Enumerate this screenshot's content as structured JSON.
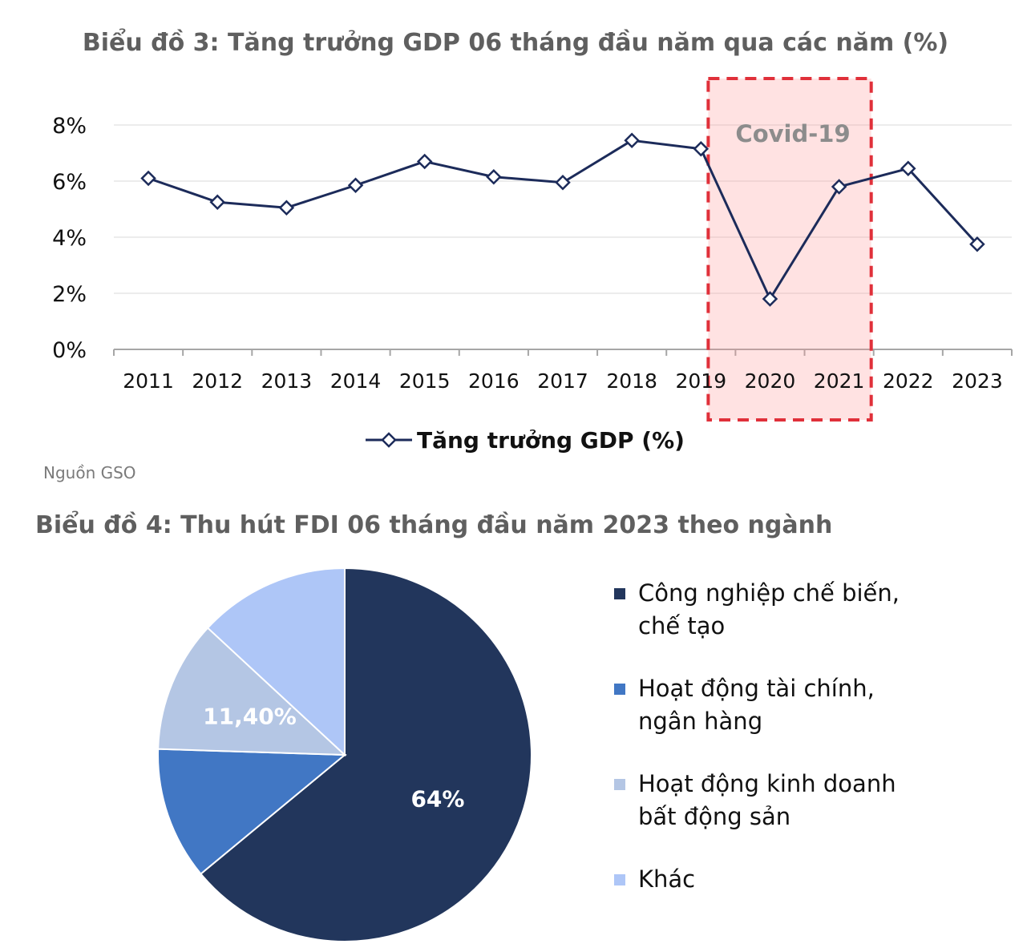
{
  "chart_data": [
    {
      "type": "line",
      "title": "Biểu đồ 3: Tăng trưởng GDP 06 tháng đầu năm qua các năm (%)",
      "x": [
        "2011",
        "2012",
        "2013",
        "2014",
        "2015",
        "2016",
        "2017",
        "2018",
        "2019",
        "2020",
        "2021",
        "2022",
        "2023"
      ],
      "series": [
        {
          "name": "Tăng trưởng GDP (%)",
          "values": [
            6.1,
            5.25,
            5.05,
            5.85,
            6.7,
            6.15,
            5.95,
            7.45,
            7.15,
            1.8,
            5.8,
            6.45,
            3.75
          ],
          "color": "#1c2b5a"
        }
      ],
      "ylim": [
        0,
        8
      ],
      "yticks": [
        "0%",
        "2%",
        "4%",
        "6%",
        "8%"
      ],
      "grid": true,
      "legend": "bottom-center",
      "annotation": {
        "text": "Covid-19",
        "x_from": "2020",
        "x_to": "2021",
        "color": "#e0303a"
      }
    },
    {
      "type": "pie",
      "title": "Biểu đồ 4:  Thu hút FDI 06 tháng đầu năm 2023 theo ngành",
      "categories": [
        "Công nghiệp chế biến, chế tạo",
        "Hoạt động tài chính, ngân hàng",
        "Hoạt động kinh doanh bất động sản",
        "Khác"
      ],
      "values": [
        64,
        11.5,
        11.4,
        13.1
      ],
      "data_labels": [
        "64%",
        "",
        "11,40%",
        ""
      ],
      "colors": [
        "#22365c",
        "#4177c4",
        "#b4c6e4",
        "#aec6f7"
      ],
      "legend": "right"
    }
  ],
  "source": "Nguồn GSO",
  "legend_items": [
    {
      "line1": "Công nghiệp chế biến,",
      "line2": "chế tạo",
      "color": "#22365c"
    },
    {
      "line1": "Hoạt động tài chính,",
      "line2": "ngân hàng",
      "color": "#4177c4"
    },
    {
      "line1": "Hoạt động kinh doanh",
      "line2": "bất động sản",
      "color": "#b4c6e4"
    },
    {
      "line1": "Khác",
      "line2": "",
      "color": "#aec6f7"
    }
  ]
}
